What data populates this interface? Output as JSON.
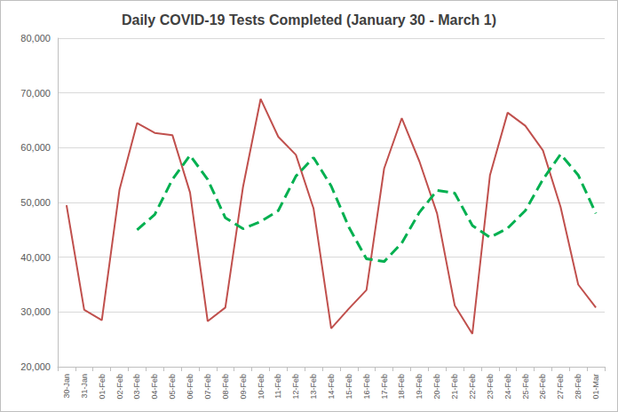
{
  "chart_data": {
    "type": "line",
    "title": "Daily COVID-19 Tests Completed (January 30 - March 1)",
    "categories": [
      "30-Jan",
      "31-Jan",
      "01-Feb",
      "02-Feb",
      "03-Feb",
      "04-Feb",
      "05-Feb",
      "06-Feb",
      "07-Feb",
      "08-Feb",
      "09-Feb",
      "10-Feb",
      "11-Feb",
      "12-Feb",
      "13-Feb",
      "14-Feb",
      "15-Feb",
      "16-Feb",
      "17-Feb",
      "18-Feb",
      "19-Feb",
      "20-Feb",
      "21-Feb",
      "22-Feb",
      "23-Feb",
      "24-Feb",
      "25-Feb",
      "26-Feb",
      "27-Feb",
      "28-Feb",
      "01-Mar"
    ],
    "series": [
      {
        "color": "#c0504d",
        "line_style": "solid",
        "values": [
          49500,
          30400,
          28500,
          52300,
          64500,
          62700,
          62300,
          51800,
          28300,
          30800,
          52800,
          68900,
          62000,
          58700,
          48900,
          27000,
          30600,
          34000,
          56200,
          65400,
          57500,
          48000,
          31200,
          26000,
          55000,
          66400,
          64000,
          59500,
          49200,
          35000,
          30800
        ]
      },
      {
        "color": "#00b050",
        "line_style": "dashed",
        "values": [
          null,
          null,
          null,
          null,
          45000,
          47800,
          54200,
          58600,
          54200,
          47200,
          45200,
          46500,
          48500,
          54800,
          58200,
          53000,
          45500,
          39700,
          39200,
          42600,
          48200,
          52200,
          51700,
          45800,
          43600,
          45300,
          48500,
          54200,
          58800,
          55000,
          48000
        ]
      }
    ],
    "ylim": [
      20000,
      80000
    ],
    "yticks": [
      {
        "value": 20000,
        "label": "20,000"
      },
      {
        "value": 30000,
        "label": "30,000"
      },
      {
        "value": 40000,
        "label": "40,000"
      },
      {
        "value": 50000,
        "label": "50,000"
      },
      {
        "value": 60000,
        "label": "60,000"
      },
      {
        "value": 70000,
        "label": "70,000"
      },
      {
        "value": 80000,
        "label": "80,000"
      }
    ],
    "grid": true
  }
}
